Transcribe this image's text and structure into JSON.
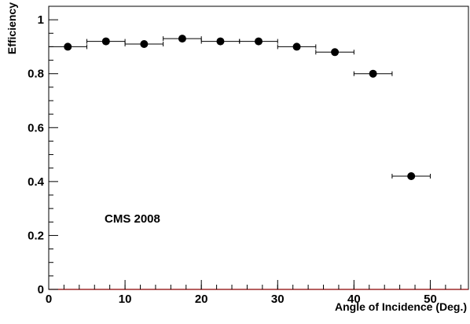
{
  "chart_data": {
    "type": "scatter",
    "title": "",
    "xlabel": "Angle of Incidence (Deg.)",
    "ylabel": "Efficiency",
    "annotation": "CMS 2008",
    "xlim": [
      0,
      55
    ],
    "ylim": [
      0,
      1.05
    ],
    "x_ticks": [
      0,
      10,
      20,
      30,
      40,
      50
    ],
    "y_ticks": [
      0,
      0.2,
      0.4,
      0.6,
      0.8,
      1
    ],
    "y_tick_labels": [
      "0",
      "0.2",
      "0.4",
      "0.6",
      "0.8",
      "1"
    ],
    "x_tick_labels": [
      "0",
      "10",
      "20",
      "30",
      "40",
      "50"
    ],
    "grid": false,
    "points": [
      {
        "x": 2.5,
        "y": 0.9,
        "xerr": 2.5
      },
      {
        "x": 7.5,
        "y": 0.92,
        "xerr": 2.5
      },
      {
        "x": 12.5,
        "y": 0.91,
        "xerr": 2.5
      },
      {
        "x": 17.5,
        "y": 0.93,
        "xerr": 2.5
      },
      {
        "x": 22.5,
        "y": 0.92,
        "xerr": 2.5
      },
      {
        "x": 27.5,
        "y": 0.92,
        "xerr": 2.5
      },
      {
        "x": 32.5,
        "y": 0.9,
        "xerr": 2.5
      },
      {
        "x": 37.5,
        "y": 0.88,
        "xerr": 2.5
      },
      {
        "x": 42.5,
        "y": 0.8,
        "xerr": 2.5
      },
      {
        "x": 47.5,
        "y": 0.42,
        "xerr": 2.5
      }
    ],
    "colors": {
      "marker": "#000000",
      "x_axis_line": "#8b0000"
    }
  }
}
